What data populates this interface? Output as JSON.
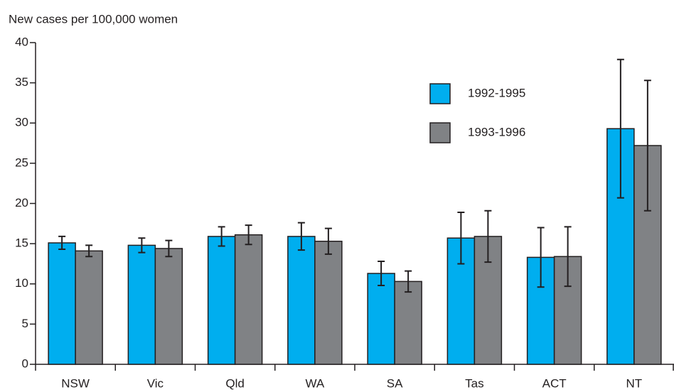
{
  "chart_data": {
    "type": "bar",
    "y_axis_label": "New cases per 100,000 women",
    "categories": [
      "NSW",
      "Vic",
      "Qld",
      "WA",
      "SA",
      "Tas",
      "ACT",
      "NT"
    ],
    "series": [
      {
        "name": "1992-1995",
        "color": "#00aeef",
        "values": [
          15.1,
          14.8,
          15.9,
          15.9,
          11.3,
          15.7,
          13.3,
          29.3
        ],
        "errors": [
          0.8,
          0.9,
          1.2,
          1.7,
          1.5,
          3.2,
          3.7,
          8.6
        ]
      },
      {
        "name": "1993-1996",
        "color": "#808285",
        "values": [
          14.1,
          14.4,
          16.1,
          15.3,
          10.3,
          15.9,
          13.4,
          27.2
        ],
        "errors": [
          0.7,
          1.0,
          1.2,
          1.6,
          1.3,
          3.2,
          3.7,
          8.1
        ]
      }
    ],
    "ylim": [
      0,
      40
    ],
    "yticks": [
      0,
      5,
      10,
      15,
      20,
      25,
      30,
      35,
      40
    ],
    "grid": false
  }
}
